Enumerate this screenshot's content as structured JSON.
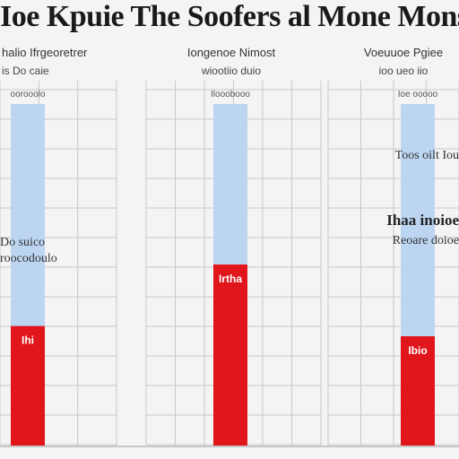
{
  "title": "Ioe Kpuie The Soofers al Mone Mons",
  "colors": {
    "background": "#f4f4f4",
    "grid": "#c8c8c8",
    "blue": "#bcd6f2",
    "red": "#e0161b"
  },
  "chart_data": [
    {
      "type": "bar",
      "title": "halio Ifrgeoretrer",
      "subtitle": "is Do caie",
      "scale_label": "oorooolo",
      "annotation": [
        "Do suico",
        "roocodoulo"
      ],
      "series": [
        {
          "values": [
            100
          ]
        },
        {
          "values": [
            35
          ],
          "label": "Ihi"
        }
      ],
      "ylim": [
        0,
        100
      ]
    },
    {
      "type": "bar",
      "title": "Iongenoe Nimost",
      "subtitle": "wiootiio duio",
      "scale_label": "Ilooobooo",
      "annotation": [],
      "series": [
        {
          "values": [
            100
          ]
        },
        {
          "values": [
            53
          ],
          "label": "Irtha"
        }
      ],
      "ylim": [
        0,
        100
      ]
    },
    {
      "type": "bar",
      "title": "Voeuuoe Pgiee",
      "subtitle": "ioo ueo iio",
      "scale_label": "Ioe ooooo",
      "annotation": [
        "Toos oilt Iou",
        "Ihaa inoioe",
        "Reoare doioe"
      ],
      "series": [
        {
          "values": [
            100
          ]
        },
        {
          "values": [
            32
          ],
          "label": "Ibio"
        }
      ],
      "ylim": [
        0,
        100
      ]
    }
  ]
}
